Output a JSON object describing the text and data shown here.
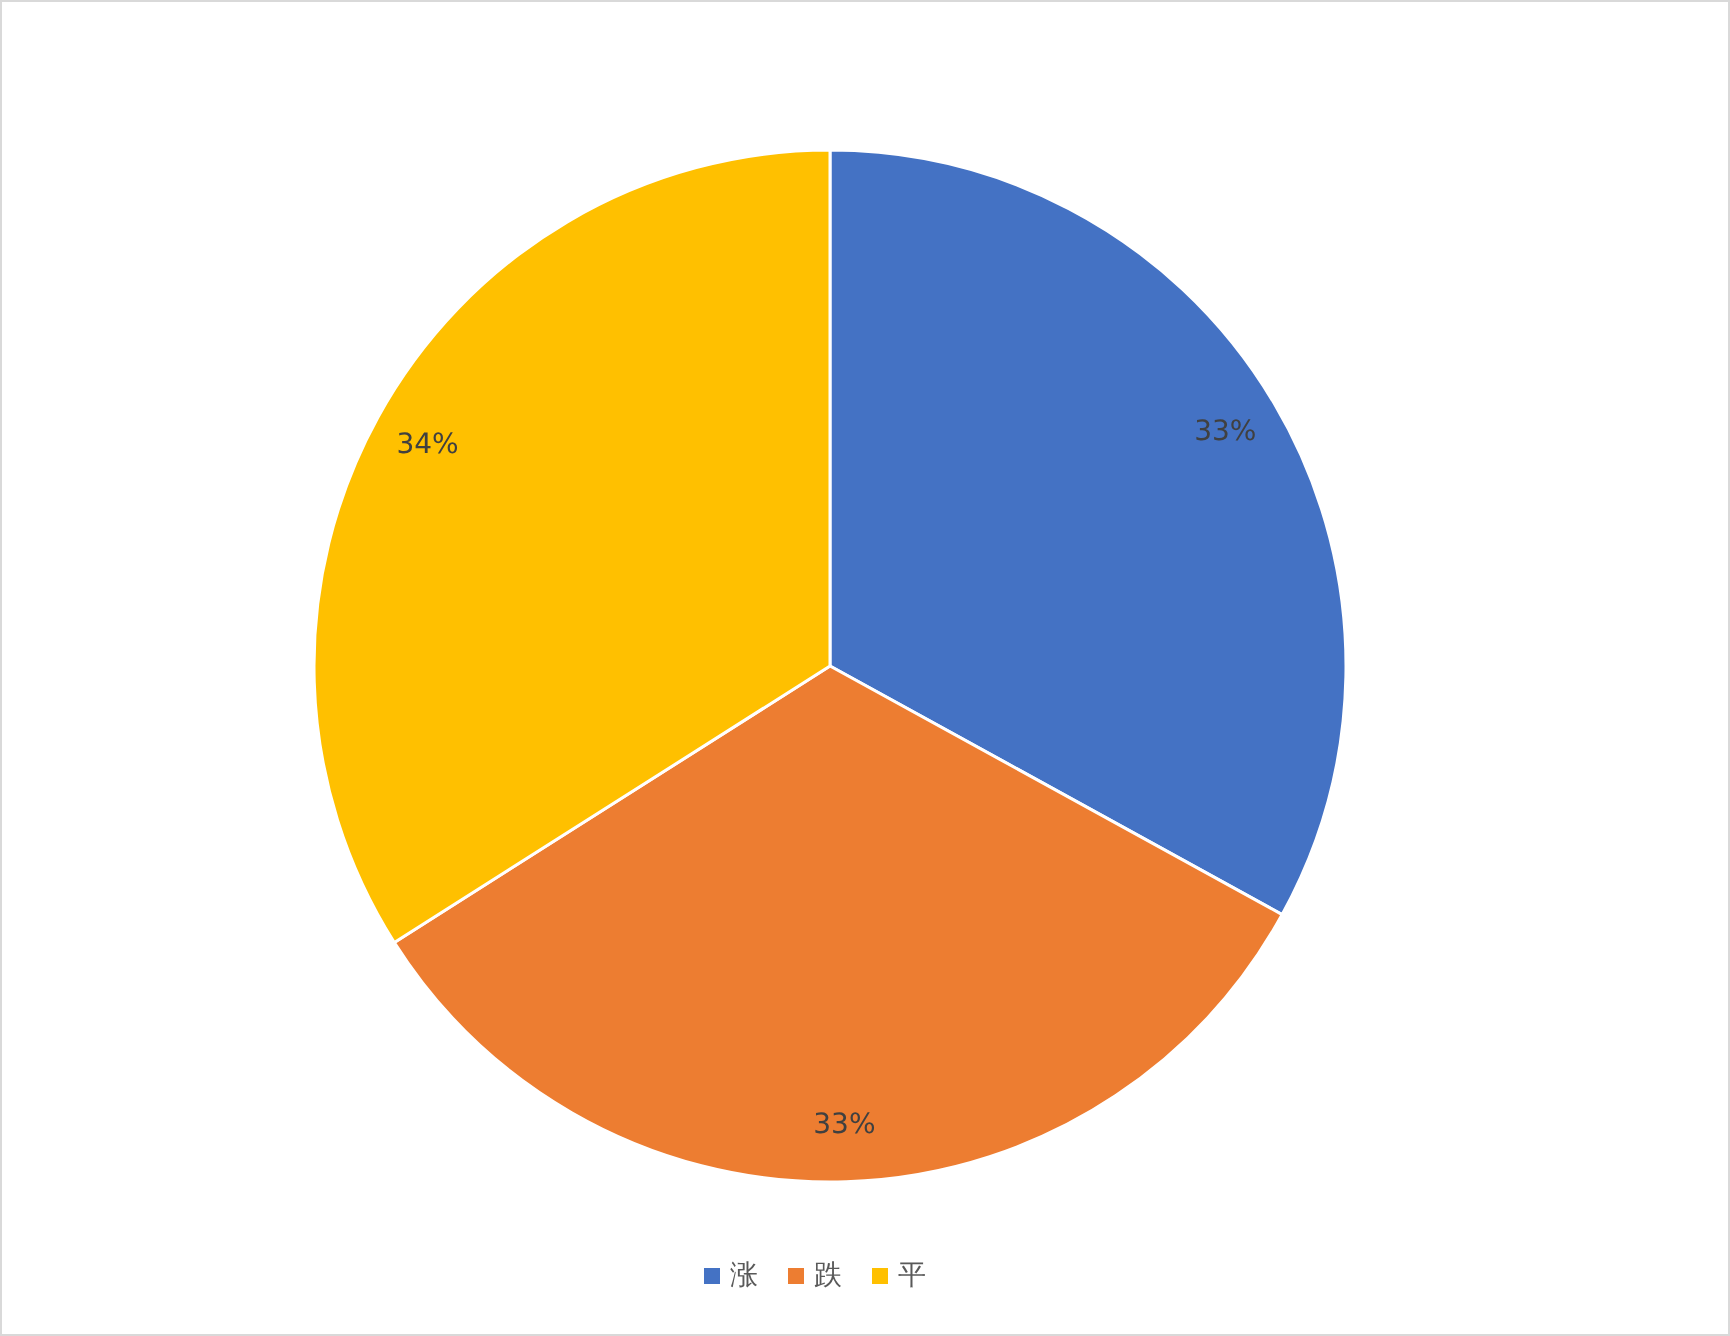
{
  "chart_data": {
    "type": "pie",
    "categories": [
      "涨",
      "跌",
      "平"
    ],
    "values": [
      33,
      33,
      34
    ],
    "colors": [
      "#4472c4",
      "#ed7d31",
      "#ffc000"
    ],
    "value_labels": [
      "33%",
      "33%",
      "34%"
    ],
    "legend": "bottom"
  }
}
